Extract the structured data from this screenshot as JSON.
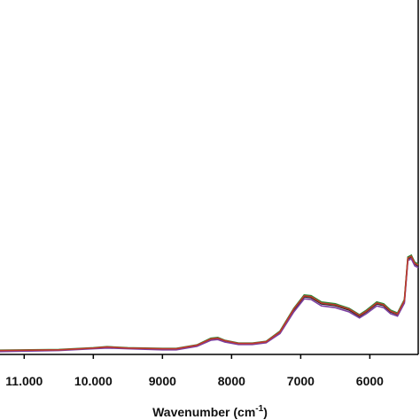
{
  "chart_data": {
    "type": "line",
    "xlabel": {
      "text": "Wavenumber (cm",
      "superscript": "-1",
      "suffix": ")"
    },
    "x": [
      11350,
      10500,
      10000,
      9800,
      9500,
      9000,
      8800,
      8500,
      8300,
      8200,
      8100,
      7900,
      7700,
      7500,
      7300,
      7100,
      6950,
      6850,
      6700,
      6500,
      6300,
      6150,
      6050,
      5900,
      5800,
      5700,
      5600,
      5500,
      5450,
      5400,
      5350,
      5300
    ],
    "series": [
      {
        "color": "#222222",
        "values": [
          0.01,
          0.0125,
          0.0175,
          0.02,
          0.0175,
          0.015,
          0.015,
          0.025,
          0.0425,
          0.045,
          0.0375,
          0.03,
          0.03,
          0.035,
          0.0625,
          0.125,
          0.1625,
          0.16,
          0.1425,
          0.1375,
          0.125,
          0.1075,
          0.12,
          0.1425,
          0.1375,
          0.12,
          0.1125,
          0.15,
          0.27,
          0.275,
          0.255,
          0.25
        ]
      },
      {
        "color": "#2e8b3a",
        "values": [
          0.012,
          0.014,
          0.019,
          0.022,
          0.019,
          0.017,
          0.017,
          0.027,
          0.046,
          0.048,
          0.04,
          0.032,
          0.032,
          0.037,
          0.066,
          0.13,
          0.168,
          0.166,
          0.148,
          0.143,
          0.13,
          0.112,
          0.125,
          0.148,
          0.143,
          0.125,
          0.117,
          0.155,
          0.275,
          0.28,
          0.26,
          0.255
        ]
      },
      {
        "color": "#7b3fa0",
        "values": [
          0.008,
          0.011,
          0.016,
          0.018,
          0.016,
          0.013,
          0.013,
          0.023,
          0.04,
          0.042,
          0.035,
          0.028,
          0.028,
          0.033,
          0.059,
          0.12,
          0.157,
          0.155,
          0.137,
          0.132,
          0.12,
          0.103,
          0.115,
          0.137,
          0.132,
          0.115,
          0.108,
          0.145,
          0.265,
          0.27,
          0.25,
          0.245
        ]
      },
      {
        "color": "#c0392b",
        "values": [
          0.011,
          0.013,
          0.018,
          0.021,
          0.018,
          0.016,
          0.016,
          0.026,
          0.044,
          0.046,
          0.039,
          0.031,
          0.031,
          0.036,
          0.064,
          0.128,
          0.165,
          0.163,
          0.145,
          0.14,
          0.128,
          0.11,
          0.122,
          0.145,
          0.14,
          0.122,
          0.114,
          0.152,
          0.272,
          0.277,
          0.257,
          0.252
        ]
      }
    ],
    "xlim": [
      11350,
      5300
    ],
    "ylim": [
      0,
      1
    ],
    "xticks": [
      {
        "value": 11000,
        "label": "11.000"
      },
      {
        "value": 10000,
        "label": "10.000"
      },
      9000,
      8000,
      7000,
      6000
    ]
  }
}
